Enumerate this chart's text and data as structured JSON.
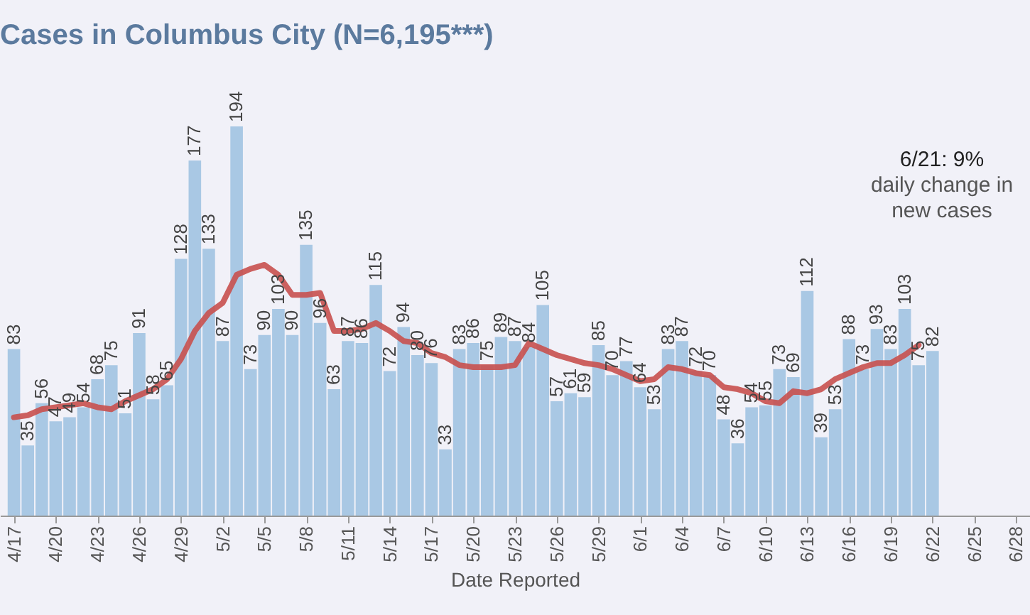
{
  "chart_data": {
    "type": "bar",
    "title": "Cases in Columbus City (N=6,195***)",
    "xlabel": "Date Reported",
    "annotations": [
      "6/21: 9%",
      "daily change in new cases"
    ],
    "x": [
      "--04-17",
      "--04-18",
      "--04-19",
      "--04-20",
      "--04-21",
      "--04-22",
      "--04-23",
      "--04-24",
      "--04-25",
      "--04-26",
      "--04-27",
      "--04-28",
      "--04-29",
      "--04-30",
      "--05-01",
      "--05-02",
      "--05-03",
      "--05-04",
      "--05-05",
      "--05-06",
      "--05-07",
      "--05-08",
      "--05-09",
      "--05-10",
      "--05-11",
      "--05-12",
      "--05-13",
      "--05-14",
      "--05-15",
      "--05-16",
      "--05-17",
      "--05-18",
      "--05-19",
      "--05-20",
      "--05-21",
      "--05-22",
      "--05-23",
      "--05-24",
      "--05-25",
      "--05-26",
      "--05-27",
      "--05-28",
      "--05-29",
      "--05-30",
      "--05-31",
      "--06-01",
      "--06-02",
      "--06-03",
      "--06-04",
      "--06-05",
      "--06-06",
      "--06-07",
      "--06-08",
      "--06-09",
      "--06-10",
      "--06-11",
      "--06-12",
      "--06-13",
      "--06-14",
      "--06-15",
      "--06-16",
      "--06-17",
      "--06-18",
      "--06-19",
      "--06-20",
      "--06-21",
      "--06-22"
    ],
    "series": [
      {
        "color": "#a9c8e4",
        "values": [
          83,
          35,
          56,
          47,
          49,
          54,
          68,
          75,
          51,
          91,
          58,
          65,
          128,
          177,
          133,
          87,
          194,
          73,
          90,
          103,
          90,
          135,
          96,
          63,
          87,
          86,
          115,
          72,
          94,
          80,
          76,
          33,
          83,
          86,
          75,
          89,
          87,
          84,
          105,
          57,
          61,
          59,
          85,
          70,
          77,
          64,
          53,
          83,
          87,
          72,
          70,
          48,
          36,
          54,
          55,
          73,
          69,
          112,
          39,
          53,
          88,
          73,
          93,
          83,
          103,
          75,
          82
        ],
        "value_labels": [
          "83",
          "35",
          "56",
          "47",
          "49",
          "54",
          "68",
          "75",
          "51",
          "91",
          "58",
          "65",
          "128",
          "177",
          "133",
          "87",
          "194",
          "73",
          "90",
          "103",
          "90",
          "135",
          "96",
          "63",
          "87",
          "86",
          "115",
          "72",
          "94",
          "80",
          "76",
          "33",
          "83",
          "86",
          "75",
          "89",
          "87",
          "84",
          "105",
          "57",
          "61",
          "59",
          "85",
          "70",
          "77",
          "64",
          "53",
          "83",
          "87",
          "72",
          "70",
          "48",
          "36",
          "54",
          "55",
          "73",
          "69",
          "112",
          "39",
          "53",
          "88",
          "73",
          "93",
          "83",
          "103",
          "75",
          "82"
        ]
      },
      {
        "type": "line",
        "color": "#c8504e",
        "values": [
          49,
          50,
          53,
          54,
          55,
          56,
          54,
          53,
          57,
          60,
          63,
          68,
          78,
          92,
          101,
          106,
          120,
          123,
          125,
          120,
          110,
          110,
          111,
          92,
          92,
          93,
          96,
          92,
          87,
          86,
          81,
          79,
          75,
          74,
          74,
          74,
          75,
          86,
          83,
          80,
          78,
          76,
          75,
          73,
          70,
          67,
          68,
          74,
          73,
          71,
          70,
          64,
          63,
          61,
          57,
          56,
          62,
          61,
          63,
          68,
          71,
          74,
          76,
          76,
          80,
          85,
          null
        ]
      }
    ],
    "xlim": [
      "--04-16",
      "--06-29"
    ],
    "xticks": [
      {
        "value": "--04-17",
        "label": "4/17"
      },
      {
        "value": "--04-20",
        "label": "4/20"
      },
      {
        "value": "--04-23",
        "label": "4/23"
      },
      {
        "value": "--04-26",
        "label": "4/26"
      },
      {
        "value": "--04-29",
        "label": "4/29"
      },
      {
        "value": "--05-02",
        "label": "5/2"
      },
      {
        "value": "--05-05",
        "label": "5/5"
      },
      {
        "value": "--05-08",
        "label": "5/8"
      },
      {
        "value": "--05-11",
        "label": "5/11"
      },
      {
        "value": "--05-14",
        "label": "5/14"
      },
      {
        "value": "--05-17",
        "label": "5/17"
      },
      {
        "value": "--05-20",
        "label": "5/20"
      },
      {
        "value": "--05-23",
        "label": "5/23"
      },
      {
        "value": "--05-26",
        "label": "5/26"
      },
      {
        "value": "--05-29",
        "label": "5/29"
      },
      {
        "value": "--06-01",
        "label": "6/1"
      },
      {
        "value": "--06-04",
        "label": "6/4"
      },
      {
        "value": "--06-07",
        "label": "6/7"
      },
      {
        "value": "--06-10",
        "label": "6/10"
      },
      {
        "value": "--06-13",
        "label": "6/13"
      },
      {
        "value": "--06-16",
        "label": "6/16"
      },
      {
        "value": "--06-19",
        "label": "6/19"
      },
      {
        "value": "--06-22",
        "label": "6/22"
      },
      {
        "value": "--06-25",
        "label": "6/25"
      },
      {
        "value": "--06-28",
        "label": "6/28"
      }
    ],
    "tick_labels": "x",
    "grid": false
  }
}
